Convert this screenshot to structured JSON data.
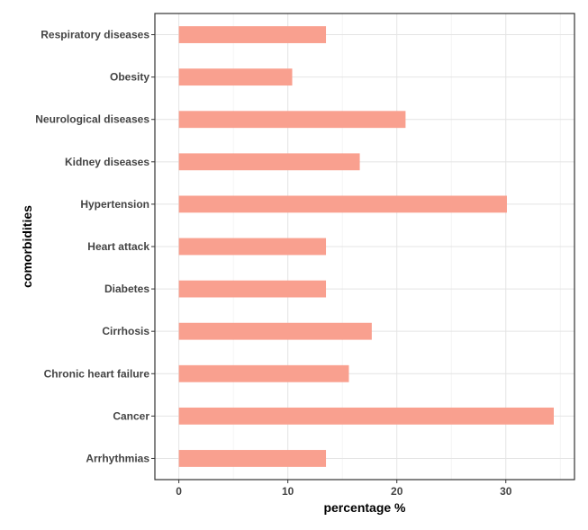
{
  "chart_data": {
    "type": "bar",
    "orientation": "horizontal",
    "title": "",
    "xlabel": "percentage %",
    "ylabel": "comorbidities",
    "xlim": [
      -2.2,
      36.3
    ],
    "xticks": [
      0,
      10,
      20,
      30
    ],
    "xtick_labels": [
      "0",
      "10",
      "20",
      "30"
    ],
    "grid": true,
    "bar_color": "#f9a08f",
    "categories": [
      "Respiratory diseases",
      "Obesity",
      "Neurological diseases",
      "Kidney diseases",
      "Hypertension",
      "Heart attack",
      "Diabetes",
      "Cirrhosis",
      "Chronic heart failure",
      "Cancer",
      "Arrhythmias"
    ],
    "values": [
      13.5,
      10.4,
      20.8,
      16.6,
      30.1,
      13.5,
      13.5,
      17.7,
      15.6,
      34.4,
      13.5
    ]
  }
}
